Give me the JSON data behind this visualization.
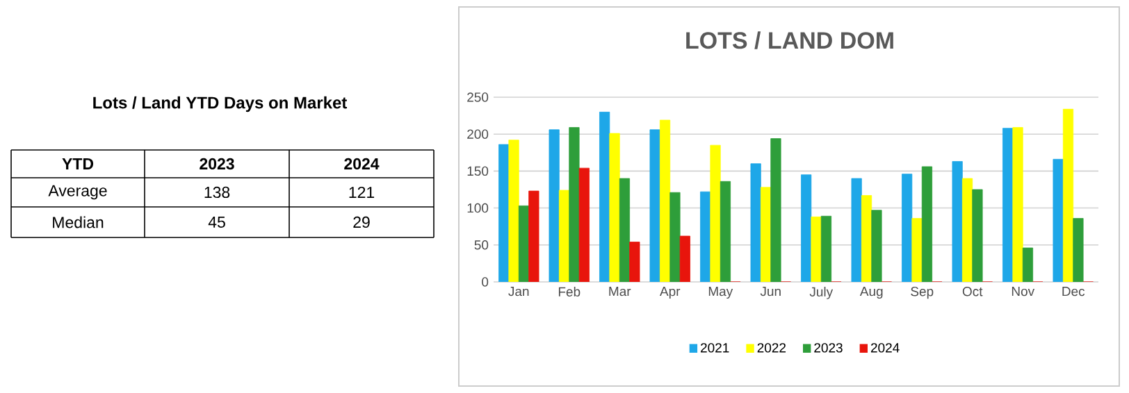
{
  "chart_data": [
    {
      "type": "other",
      "title": "Lots / Land YTD Days on Market",
      "xlabel": "YTD",
      "categories": [
        "Average",
        "Median"
      ],
      "data_labels": true,
      "series": [
        {
          "name": "2023",
          "values": [
            138,
            45
          ]
        },
        {
          "name": "2024",
          "values": [
            121,
            29
          ]
        }
      ]
    },
    {
      "type": "bar",
      "title": "LOTS / LAND DOM",
      "categories": [
        "Jan",
        "Feb",
        "Mar",
        "Apr",
        "May",
        "Jun",
        "July",
        "Aug",
        "Sep",
        "Oct",
        "Nov",
        "Dec"
      ],
      "ylim": [
        0,
        250
      ],
      "yticks": [
        0,
        50,
        100,
        150,
        200,
        250
      ],
      "grid": "y",
      "legend": "bottom",
      "series": [
        {
          "name": "2021",
          "color": "#1ea7e8",
          "values": [
            186,
            206,
            230,
            206,
            122,
            160,
            145,
            140,
            146,
            163,
            208,
            166
          ]
        },
        {
          "name": "2022",
          "color": "#ffff00",
          "values": [
            192,
            124,
            201,
            219,
            185,
            128,
            88,
            117,
            86,
            140,
            209,
            234
          ]
        },
        {
          "name": "2023",
          "color": "#2e9e3a",
          "values": [
            103,
            209,
            140,
            121,
            136,
            194,
            89,
            97,
            156,
            125,
            46,
            86
          ]
        },
        {
          "name": "2024",
          "color": "#e8150c",
          "values": [
            123,
            154,
            54,
            62,
            0,
            0,
            0,
            0,
            0,
            0,
            0,
            0
          ]
        }
      ]
    }
  ]
}
